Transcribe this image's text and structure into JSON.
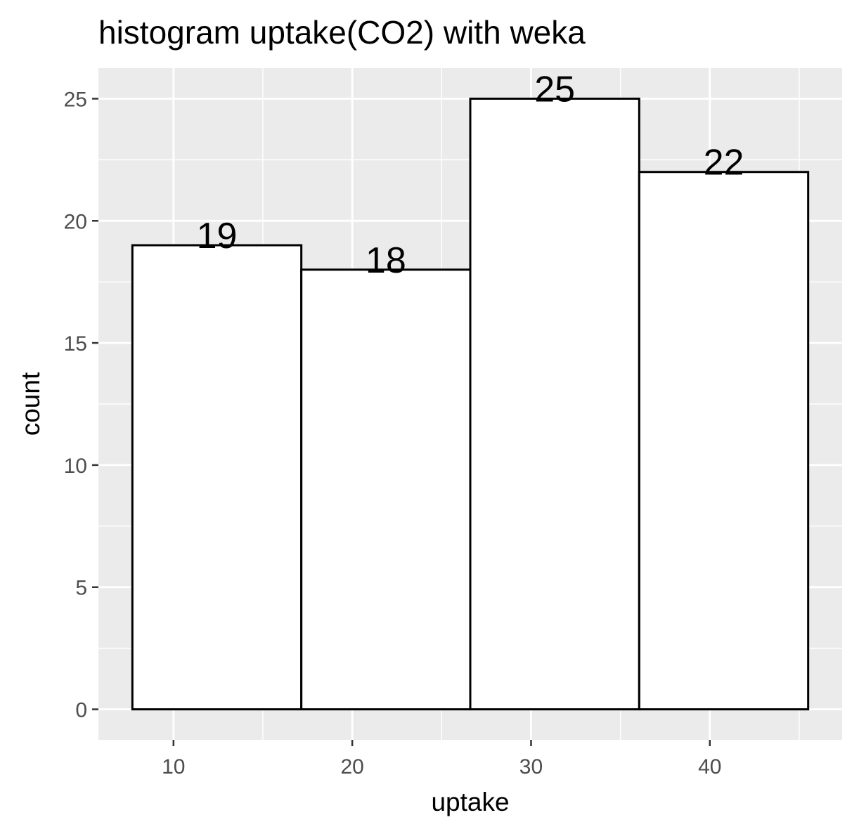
{
  "chart_data": {
    "type": "bar",
    "title": "histogram uptake(CO2) with weka",
    "xlabel": "uptake",
    "ylabel": "count",
    "bins": [
      {
        "x0": 7.7,
        "x1": 17.15,
        "count": 19,
        "label": "19"
      },
      {
        "x0": 17.15,
        "x1": 26.6,
        "count": 18,
        "label": "18"
      },
      {
        "x0": 26.6,
        "x1": 36.05,
        "count": 25,
        "label": "25"
      },
      {
        "x0": 36.05,
        "x1": 45.5,
        "count": 22,
        "label": "22"
      }
    ],
    "xlim": [
      5.8,
      47.4
    ],
    "ylim": [
      -1.25,
      26.25
    ],
    "x_ticks": [
      10,
      20,
      30,
      40
    ],
    "x_tick_labels": [
      "10",
      "20",
      "30",
      "40"
    ],
    "y_ticks": [
      0,
      5,
      10,
      15,
      20,
      25
    ],
    "y_tick_labels": [
      "0",
      "5",
      "10",
      "15",
      "20",
      "25"
    ],
    "x_minor_ticks": [
      15,
      25,
      35,
      45
    ],
    "y_minor_ticks": [
      2.5,
      7.5,
      12.5,
      17.5,
      22.5
    ],
    "grid": true,
    "legend": "none",
    "colors": {
      "panel_background": "#ebebeb",
      "grid": "#ffffff",
      "bar_fill": "#ffffff",
      "bar_stroke": "#000000",
      "tick": "#333333",
      "tick_label": "#4d4d4d"
    }
  }
}
